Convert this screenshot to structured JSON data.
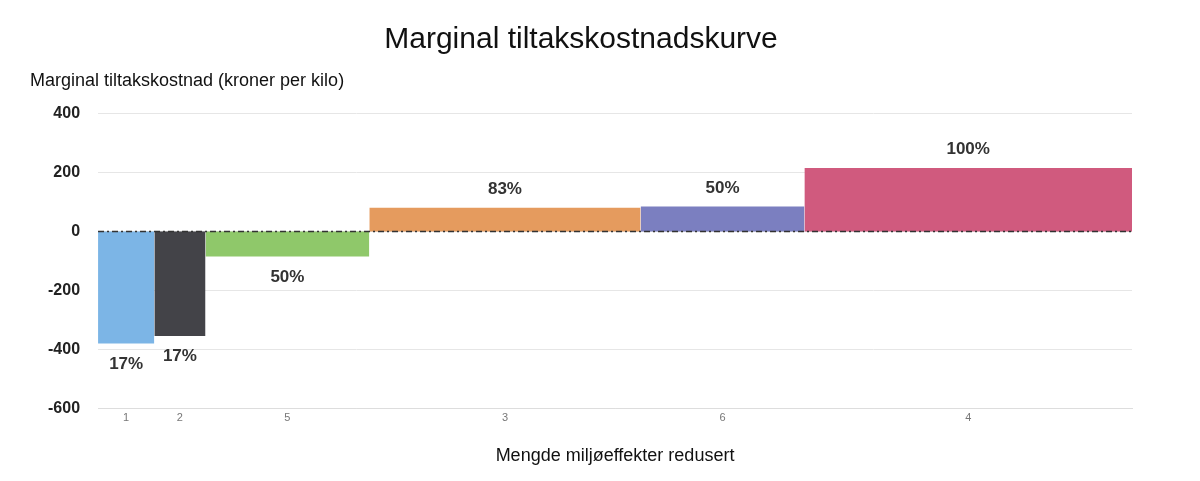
{
  "chart_data": {
    "type": "bar",
    "title": "Marginal tiltakskostnadskurve",
    "y_label": "Marginal tiltakskostnad (kroner per kilo)",
    "x_label": "Mengde miljøeffekter redusert",
    "categories": [
      "1",
      "2",
      "5",
      "3",
      "6",
      "4"
    ],
    "widths": [
      0.55,
      0.5,
      1.6,
      2.65,
      1.6,
      3.2
    ],
    "values": [
      -380,
      -355,
      -85,
      80,
      85,
      215
    ],
    "colors": [
      "#7cb5e6",
      "#434348",
      "#8fc86a",
      "#e59b5e",
      "#7b7fc0",
      "#d05a7e"
    ],
    "annotations": [
      "17%",
      "17%",
      "50%",
      "83%",
      "50%",
      "100%"
    ],
    "xlim": [
      0,
      10.1
    ],
    "ylim": [
      -600,
      400
    ],
    "yticks": [
      -600,
      -400,
      -200,
      0,
      200,
      400
    ],
    "grid": true
  }
}
